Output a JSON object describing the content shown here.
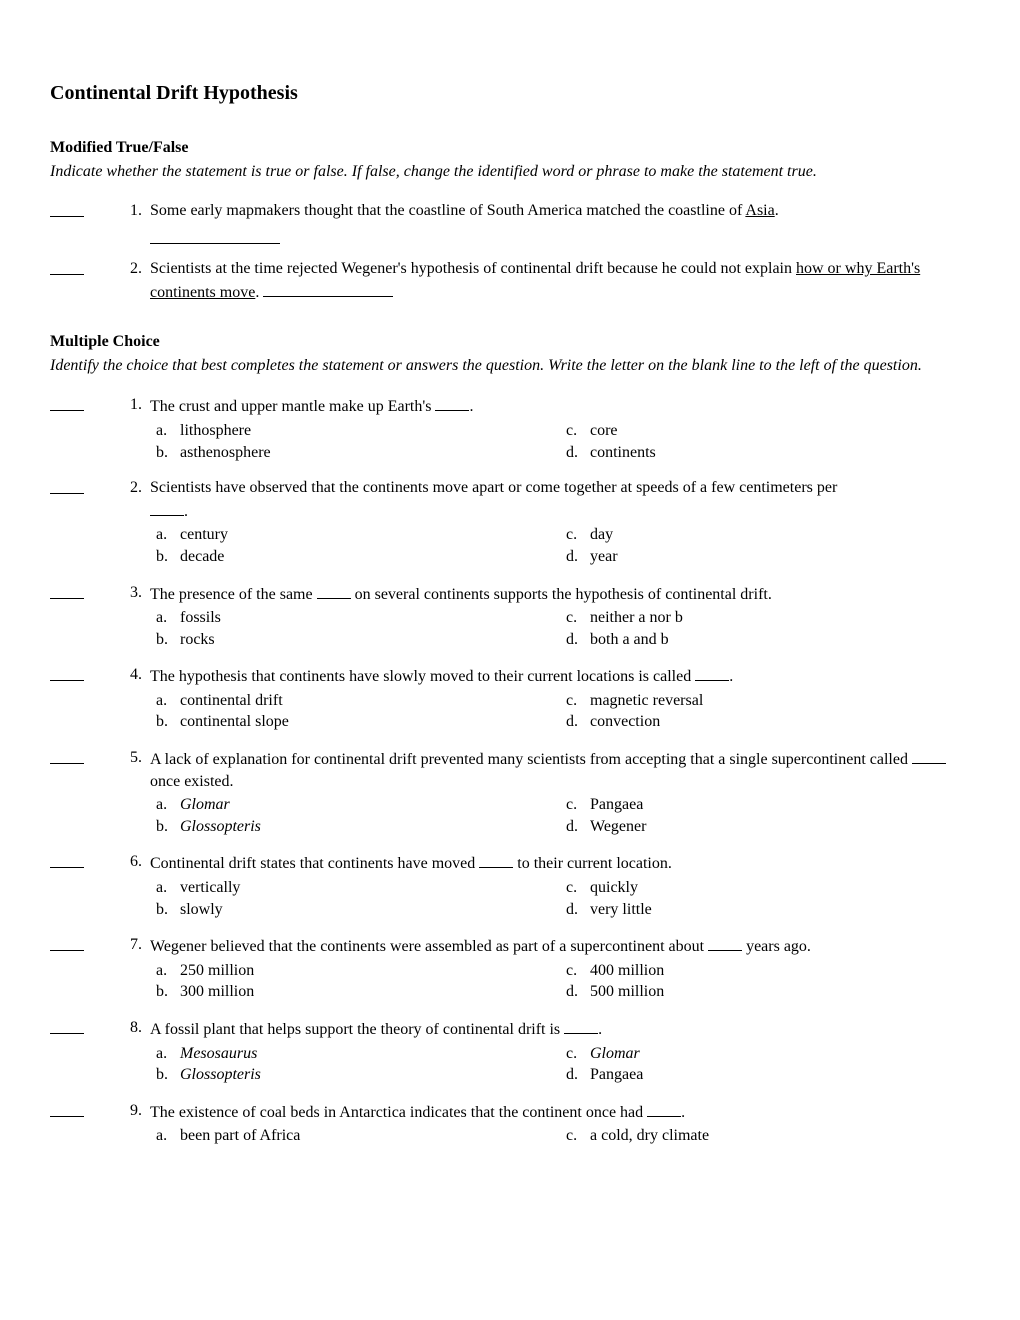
{
  "title": "Continental Drift Hypothesis",
  "tf_section": {
    "header": "Modified True/False",
    "instructions": "Indicate whether the statement is true or false. If false, change the identified word or phrase to make the statement true.",
    "questions": [
      {
        "num": "1.",
        "pre": "Some early mapmakers thought that the coastline of South America matched the coastline of ",
        "underlined": "Asia",
        "post": "."
      },
      {
        "num": "2.",
        "pre": "Scientists at the time rejected Wegener's hypothesis of continental drift because he could not explain ",
        "underlined": "how or why Earth's continents move",
        "post": "."
      }
    ]
  },
  "mc_section": {
    "header": "Multiple Choice",
    "instructions": "Identify the choice that best completes the statement or answers the question. Write the letter on the blank line to the left of the question.",
    "questions": [
      {
        "num": "1.",
        "stem_pre": "The crust and upper mantle make up Earth's ",
        "stem_post": ".",
        "options": {
          "a": "lithosphere",
          "b": "asthenosphere",
          "c": "core",
          "d": "continents"
        }
      },
      {
        "num": "2.",
        "stem_pre": "Scientists have observed that the continents move apart or come together at speeds of a few centimeters per ",
        "stem_post": ".",
        "blank_below": true,
        "options": {
          "a": "century",
          "b": "decade",
          "c": "day",
          "d": "year"
        }
      },
      {
        "num": "3.",
        "stem_pre": "The presence of the same ",
        "stem_mid": " on several continents supports the hypothesis of continental drift.",
        "options": {
          "a": "fossils",
          "b": "rocks",
          "c": "neither a nor b",
          "d": "both a and b"
        }
      },
      {
        "num": "4.",
        "stem_pre": "The hypothesis that continents have slowly moved to their current locations is called ",
        "stem_post": ".",
        "options": {
          "a": "continental drift",
          "b": "continental slope",
          "c": "magnetic reversal",
          "d": "convection"
        }
      },
      {
        "num": "5.",
        "stem_pre": "A lack of explanation for continental drift prevented many scientists from accepting that a single supercontinent called ",
        "stem_post": " once existed.",
        "options": {
          "a_italic": "Glomar",
          "b_italic": "Glossopteris",
          "c": "Pangaea",
          "d": "Wegener"
        }
      },
      {
        "num": "6.",
        "stem_pre": "Continental drift states that continents have moved ",
        "stem_post": " to their current location.",
        "options": {
          "a": "vertically",
          "b": "slowly",
          "c": "quickly",
          "d": "very little"
        }
      },
      {
        "num": "7.",
        "stem_pre": "Wegener believed that the continents were assembled as part of a supercontinent about ",
        "stem_post": " years ago.",
        "options": {
          "a": "250 million",
          "b": "300 million",
          "c": "400 million",
          "d": "500 million"
        }
      },
      {
        "num": "8.",
        "stem_pre": "A fossil plant that helps support the theory of continental drift is ",
        "stem_post": ".",
        "options": {
          "a_italic": "Mesosaurus",
          "b_italic": "Glossopteris",
          "c_italic": "Glomar",
          "d": "Pangaea"
        }
      },
      {
        "num": "9.",
        "stem_pre": "The existence of coal beds in Antarctica indicates that the continent once had ",
        "stem_post": ".",
        "options": {
          "a": "been part of Africa",
          "c": "a cold, dry climate"
        }
      }
    ]
  }
}
